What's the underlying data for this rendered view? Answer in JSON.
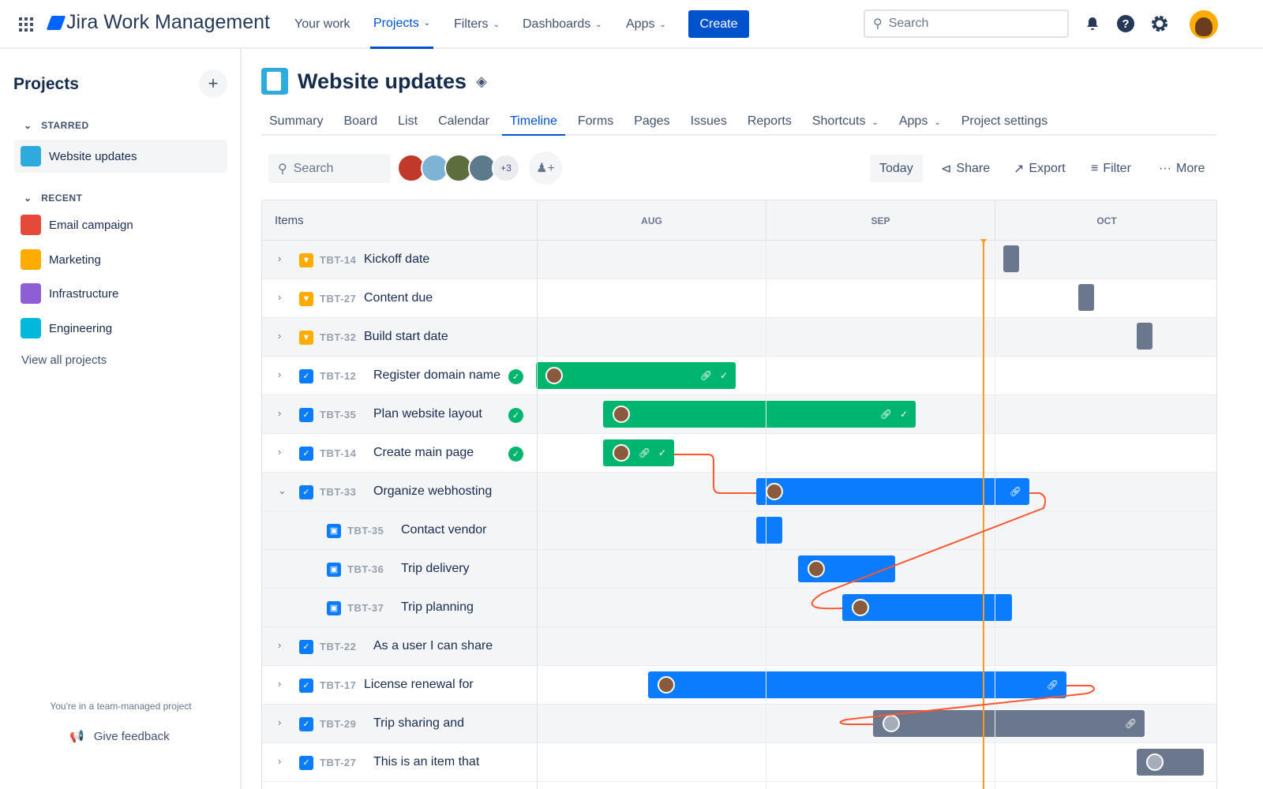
{
  "topnav": {
    "product": "Jira Work Management",
    "items": [
      {
        "label": "Your work",
        "chevron": false
      },
      {
        "label": "Projects",
        "chevron": true,
        "active": true
      },
      {
        "label": "Filters",
        "chevron": true
      },
      {
        "label": "Dashboards",
        "chevron": true
      },
      {
        "label": "Apps",
        "chevron": true
      }
    ],
    "create": "Create",
    "search_placeholder": "Search",
    "icons": [
      "notifications-icon",
      "help-icon",
      "settings-icon"
    ]
  },
  "sidebar": {
    "title": "Projects",
    "starred_label": "STARRED",
    "recent_label": "RECENT",
    "starred": [
      {
        "label": "Website updates",
        "color": "#2eaadc"
      }
    ],
    "recent": [
      {
        "label": "Email campaign",
        "color": "#e5493a"
      },
      {
        "label": "Marketing",
        "color": "#ffab00"
      },
      {
        "label": "Infrastructure",
        "color": "#8f5ed4"
      },
      {
        "label": "Engineering",
        "color": "#00b8d9"
      }
    ],
    "view_all": "View all projects",
    "team_note": "You're in a team-managed project",
    "feedback": "Give feedback"
  },
  "project": {
    "title": "Website updates",
    "tabs": [
      {
        "label": "Summary"
      },
      {
        "label": "Board"
      },
      {
        "label": "List"
      },
      {
        "label": "Calendar"
      },
      {
        "label": "Timeline",
        "active": true
      },
      {
        "label": "Forms"
      },
      {
        "label": "Pages"
      },
      {
        "label": "Issues"
      },
      {
        "label": "Reports"
      },
      {
        "label": "Shortcuts",
        "chevron": true
      },
      {
        "label": "Apps",
        "chevron": true
      },
      {
        "label": "Project settings"
      }
    ]
  },
  "toolbar": {
    "search_placeholder": "Search",
    "more_avatars": "+3",
    "today": "Today",
    "share": "Share",
    "export": "Export",
    "filter": "Filter",
    "more": "More"
  },
  "timeline": {
    "items_header": "Items",
    "months": [
      "AUG",
      "SEP",
      "OCT"
    ],
    "colors": {
      "done": "#00b66e",
      "in_progress": "#0c7cff",
      "todo": "#6b778c",
      "dependency": "#ff5630",
      "today": "#ff991f"
    },
    "rows": [
      {
        "key": "TBT-14",
        "summary": "Kickoff date",
        "type": "milestone"
      },
      {
        "key": "TBT-27",
        "summary": "Content due",
        "type": "milestone"
      },
      {
        "key": "TBT-32",
        "summary": "Build start date",
        "type": "milestone"
      },
      {
        "key": "TBT-12",
        "summary": "Register domain name",
        "type": "task",
        "done": true
      },
      {
        "key": "TBT-35",
        "summary": "Plan website layout",
        "type": "task",
        "done": true
      },
      {
        "key": "TBT-14",
        "summary": "Create main page",
        "type": "task",
        "done": true
      },
      {
        "key": "TBT-33",
        "summary": "Organize webhosting",
        "type": "task",
        "expanded": true
      },
      {
        "key": "TBT-35",
        "summary": "Contact vendor",
        "type": "subtask"
      },
      {
        "key": "TBT-36",
        "summary": "Trip delivery",
        "type": "subtask"
      },
      {
        "key": "TBT-37",
        "summary": "Trip planning",
        "type": "subtask"
      },
      {
        "key": "TBT-22",
        "summary": "As a user I can share",
        "type": "task"
      },
      {
        "key": "TBT-17",
        "summary": "License renewal for",
        "type": "task"
      },
      {
        "key": "TBT-29",
        "summary": "Trip sharing and",
        "type": "task"
      },
      {
        "key": "TBT-27",
        "summary": "This is an item that",
        "type": "task"
      }
    ]
  }
}
